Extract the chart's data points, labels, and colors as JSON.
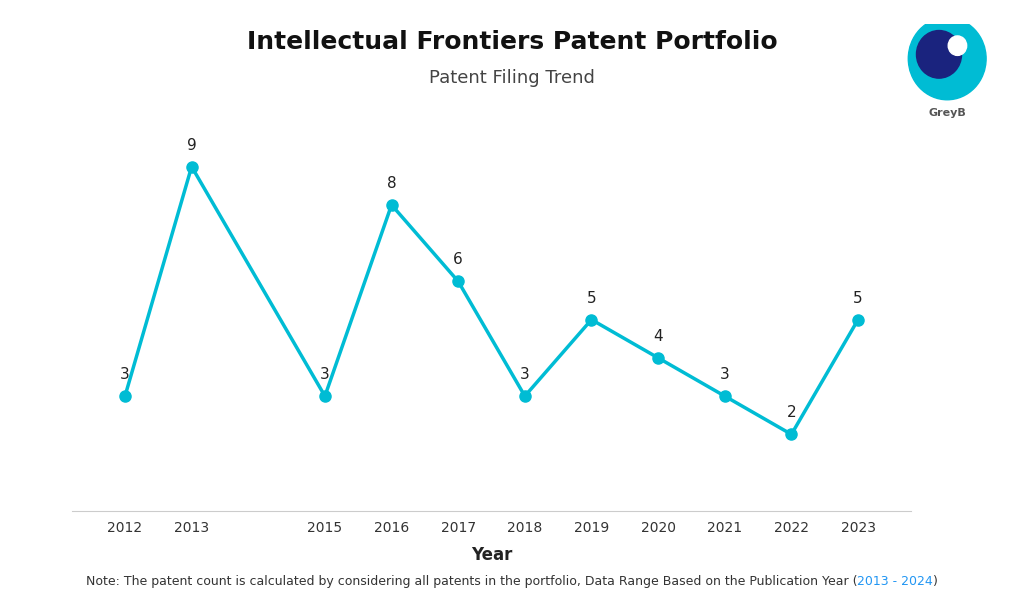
{
  "title": "Intellectual Frontiers Patent Portfolio",
  "subtitle": "Patent Filing Trend",
  "xlabel": "Year",
  "note_part1": "Note: The patent count is calculated by considering all patents in the portfolio, Data Range Based on the Publication Year (",
  "note_highlight": "2013 - 2024",
  "note_part3": ")",
  "years": [
    2012,
    2013,
    2015,
    2016,
    2017,
    2018,
    2019,
    2020,
    2021,
    2022,
    2023
  ],
  "values": [
    3,
    9,
    3,
    8,
    6,
    3,
    5,
    4,
    3,
    2,
    5
  ],
  "line_color": "#00BCD4",
  "marker_color": "#00BCD4",
  "marker_size": 8,
  "line_width": 2.5,
  "background_color": "#ffffff",
  "title_fontsize": 18,
  "subtitle_fontsize": 13,
  "label_fontsize": 11,
  "note_fontsize": 9,
  "note_color": "#333333",
  "note_highlight_color": "#2196F3",
  "xlabel_fontsize": 12,
  "ylim": [
    0,
    11
  ],
  "spine_color": "#cccccc"
}
